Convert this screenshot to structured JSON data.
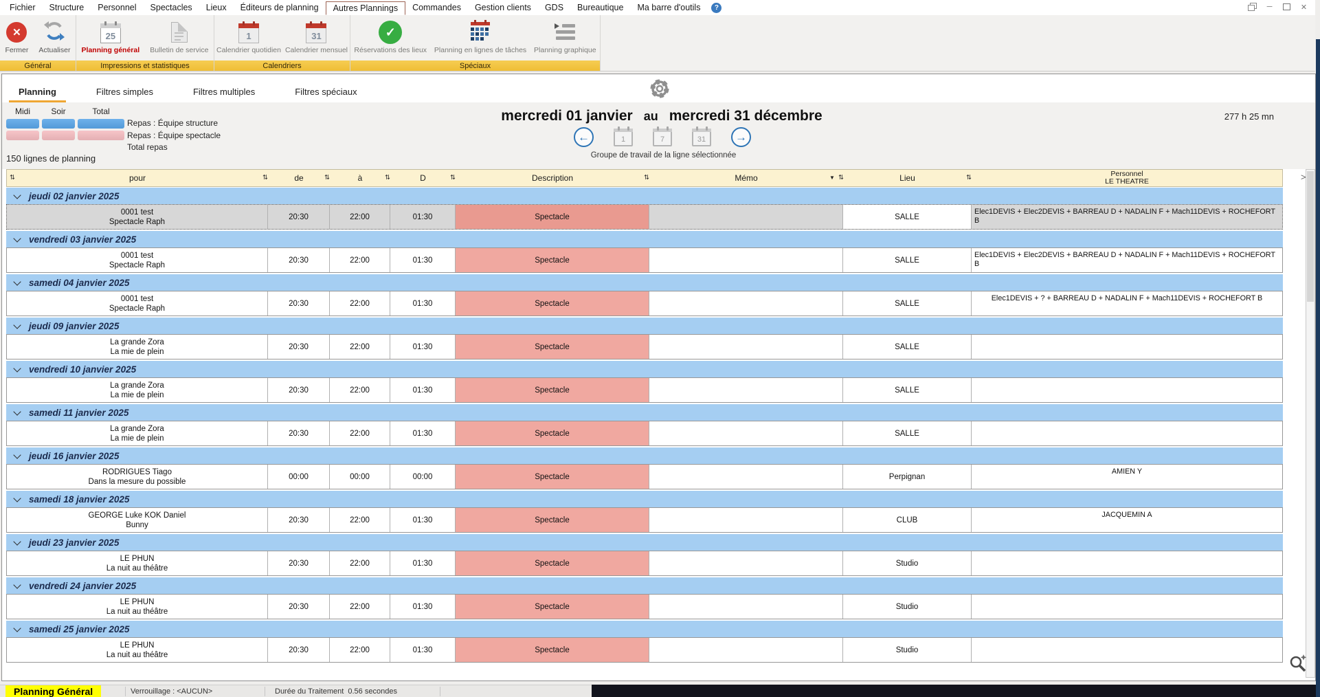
{
  "menubar": {
    "items": [
      "Fichier",
      "Structure",
      "Personnel",
      "Spectacles",
      "Lieux",
      "Éditeurs de planning",
      "Autres Plannings",
      "Commandes",
      "Gestion clients",
      "GDS",
      "Bureautique",
      "Ma barre d'outils"
    ],
    "active": "Autres Plannings",
    "help_label": "?"
  },
  "ribbon": {
    "groups": [
      {
        "label": "Général",
        "buttons": [
          {
            "label": "Fermer",
            "icon": "close-circle",
            "icon_text": "✕",
            "label_style": "dark"
          },
          {
            "label": "Actualiser",
            "icon": "refresh",
            "label_style": "dark"
          }
        ]
      },
      {
        "label": "Impressions et statistiques",
        "buttons": [
          {
            "label": "Planning général",
            "icon": "calendar-gray",
            "icon_text": "25",
            "active": true
          },
          {
            "label": "Bulletin de service",
            "icon": "document"
          }
        ]
      },
      {
        "label": "Calendriers",
        "buttons": [
          {
            "label": "Calendrier quotidien",
            "icon": "calendar-red",
            "icon_text": "1"
          },
          {
            "label": "Calendrier mensuel",
            "icon": "calendar-red",
            "icon_text": "31"
          }
        ]
      },
      {
        "label": "Spéciaux",
        "buttons": [
          {
            "label": "Réservations des lieux",
            "icon": "check-circle",
            "icon_text": "✓"
          },
          {
            "label": "Planning en lignes de tâches",
            "icon": "task-grid"
          },
          {
            "label": "Planning graphique",
            "icon": "graph-bars"
          }
        ]
      }
    ]
  },
  "tabs": [
    "Planning",
    "Filtres simples",
    "Filtres multiples",
    "Filtres spéciaux"
  ],
  "active_tab": "Planning",
  "legend": {
    "columns": [
      "Midi",
      "Soir",
      "Total"
    ],
    "rows": [
      {
        "label": "Repas : Équipe structure",
        "color": "#58A5E8"
      },
      {
        "label": "Repas : Équipe spectacle",
        "color": "#F5BCC0"
      },
      {
        "label": "Total repas",
        "color": null
      }
    ]
  },
  "summary": {
    "line_count": "150 lignes de planning",
    "total_hours": "277 h 25 mn"
  },
  "date_nav": {
    "from": "mercredi 01 janvier",
    "separator": "au",
    "to": "mercredi 31 décembre",
    "caption": "Groupe de travail de la ligne sélectionnée",
    "buttons": [
      {
        "name": "previous",
        "type": "arrow",
        "glyph": "←"
      },
      {
        "name": "day",
        "type": "calendar",
        "text": "1"
      },
      {
        "name": "week",
        "type": "calendar",
        "text": "7"
      },
      {
        "name": "month",
        "type": "calendar",
        "text": "31"
      },
      {
        "name": "next",
        "type": "arrow",
        "glyph": "→"
      }
    ]
  },
  "table": {
    "columns": [
      {
        "label": "pour"
      },
      {
        "label": "de"
      },
      {
        "label": "à"
      },
      {
        "label": "D"
      },
      {
        "label": "Description"
      },
      {
        "label": "Mémo",
        "filter": true
      },
      {
        "label": "Lieu"
      },
      {
        "label": "Personnel",
        "sublabel": "LE THEATRE"
      }
    ],
    "column_scroll_glyph": ">",
    "groups": [
      {
        "date": "jeudi 02 janvier 2025",
        "rows": [
          {
            "pour": [
              "0001 test",
              "Spectacle Raph"
            ],
            "de": "20:30",
            "a": "22:00",
            "d": "01:30",
            "description": "Spectacle",
            "memo": "",
            "lieu": "SALLE",
            "personnel": "Elec1DEVIS + Elec2DEVIS + BARREAU D + NADALIN F + Mach11DEVIS + ROCHEFORT B",
            "selected": true
          }
        ]
      },
      {
        "date": "vendredi 03 janvier 2025",
        "rows": [
          {
            "pour": [
              "0001 test",
              "Spectacle Raph"
            ],
            "de": "20:30",
            "a": "22:00",
            "d": "01:30",
            "description": "Spectacle",
            "memo": "",
            "lieu": "SALLE",
            "personnel": "Elec1DEVIS + Elec2DEVIS + BARREAU D + NADALIN F + Mach11DEVIS + ROCHEFORT B",
            "selected": false
          }
        ]
      },
      {
        "date": "samedi 04 janvier 2025",
        "rows": [
          {
            "pour": [
              "0001 test",
              "Spectacle Raph"
            ],
            "de": "20:30",
            "a": "22:00",
            "d": "01:30",
            "description": "Spectacle",
            "memo": "",
            "lieu": "SALLE",
            "personnel": "Elec1DEVIS + ? + BARREAU D + NADALIN F + Mach11DEVIS + ROCHEFORT B",
            "selected": false
          }
        ]
      },
      {
        "date": "jeudi 09 janvier 2025",
        "rows": [
          {
            "pour": [
              "La grande Zora",
              "La mie de plein"
            ],
            "de": "20:30",
            "a": "22:00",
            "d": "01:30",
            "description": "Spectacle",
            "memo": "",
            "lieu": "SALLE",
            "personnel": "",
            "selected": false
          }
        ]
      },
      {
        "date": "vendredi 10 janvier 2025",
        "rows": [
          {
            "pour": [
              "La grande Zora",
              "La mie de plein"
            ],
            "de": "20:30",
            "a": "22:00",
            "d": "01:30",
            "description": "Spectacle",
            "memo": "",
            "lieu": "SALLE",
            "personnel": "",
            "selected": false
          }
        ]
      },
      {
        "date": "samedi 11 janvier 2025",
        "rows": [
          {
            "pour": [
              "La grande Zora",
              "La mie de plein"
            ],
            "de": "20:30",
            "a": "22:00",
            "d": "01:30",
            "description": "Spectacle",
            "memo": "",
            "lieu": "SALLE",
            "personnel": "",
            "selected": false
          }
        ]
      },
      {
        "date": "jeudi 16 janvier 2025",
        "rows": [
          {
            "pour": [
              "RODRIGUES Tiago",
              "Dans la mesure du possible"
            ],
            "de": "00:00",
            "a": "00:00",
            "d": "00:00",
            "description": "Spectacle",
            "memo": "",
            "lieu": "Perpignan",
            "personnel": "AMIEN Y",
            "selected": false
          }
        ]
      },
      {
        "date": "samedi 18 janvier 2025",
        "rows": [
          {
            "pour": [
              "GEORGE Luke KOK Daniel",
              "Bunny"
            ],
            "de": "20:30",
            "a": "22:00",
            "d": "01:30",
            "description": "Spectacle",
            "memo": "",
            "lieu": "CLUB",
            "personnel": "JACQUEMIN A",
            "selected": false
          }
        ]
      },
      {
        "date": "jeudi 23 janvier 2025",
        "rows": [
          {
            "pour": [
              "LE PHUN",
              "La nuit au théâtre"
            ],
            "de": "20:30",
            "a": "22:00",
            "d": "01:30",
            "description": "Spectacle",
            "memo": "",
            "lieu": "Studio",
            "personnel": "",
            "selected": false
          }
        ]
      },
      {
        "date": "vendredi 24 janvier 2025",
        "rows": [
          {
            "pour": [
              "LE PHUN",
              "La nuit au théâtre"
            ],
            "de": "20:30",
            "a": "22:00",
            "d": "01:30",
            "description": "Spectacle",
            "memo": "",
            "lieu": "Studio",
            "personnel": "",
            "selected": false
          }
        ]
      },
      {
        "date": "samedi 25 janvier 2025",
        "rows": [
          {
            "pour": [
              "LE PHUN",
              "La nuit au théâtre"
            ],
            "de": "20:30",
            "a": "22:00",
            "d": "01:30",
            "description": "Spectacle",
            "memo": "",
            "lieu": "Studio",
            "personnel": "",
            "selected": false
          }
        ]
      }
    ]
  },
  "statusbar": {
    "mode": "Planning Général",
    "lock": "Verrouillage : <AUCUN>",
    "duration": "Durée du Traitement  0.56 secondes"
  }
}
